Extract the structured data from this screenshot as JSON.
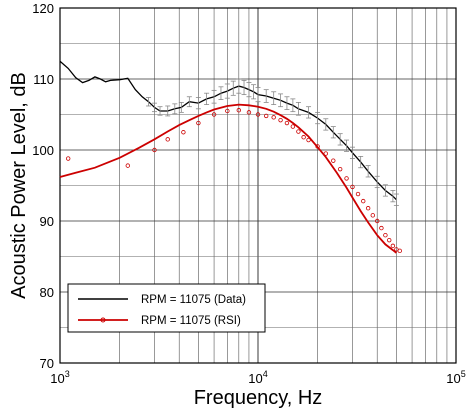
{
  "chart_data": {
    "type": "line",
    "title": "",
    "xlabel": "Frequency, Hz",
    "ylabel": "Acoustic Power Level, dB",
    "x_scale": "log",
    "xlim": [
      1000,
      100000
    ],
    "ylim": [
      70,
      120
    ],
    "x_ticks": [
      {
        "value": 1000,
        "base": "10",
        "exp": "3"
      },
      {
        "value": 10000,
        "base": "10",
        "exp": "4"
      },
      {
        "value": 100000,
        "base": "10",
        "exp": "5"
      }
    ],
    "y_ticks": [
      "70",
      "80",
      "90",
      "100",
      "110",
      "120"
    ],
    "y_tick_values": [
      70,
      80,
      90,
      100,
      110,
      120
    ],
    "grid": true,
    "legend_position": "bottom-left",
    "series": [
      {
        "name": "RPM = 11075 (Data)",
        "color": "#000000",
        "style": "line-with-errorbars",
        "x": [
          1000,
          1100,
          1200,
          1300,
          1400,
          1500,
          1600,
          1700,
          1800,
          2000,
          2200,
          2400,
          2600,
          2800,
          3000,
          3200,
          3500,
          3800,
          4100,
          4500,
          5000,
          5500,
          6000,
          6500,
          7000,
          7500,
          8000,
          8500,
          9000,
          9500,
          10000,
          11000,
          12000,
          13000,
          14000,
          15000,
          16000,
          18000,
          20000,
          22000,
          24000,
          26000,
          28000,
          30000,
          33000,
          36000,
          40000,
          44000,
          48000,
          50000
        ],
        "y": [
          112.5,
          111.5,
          110.2,
          109.5,
          109.8,
          110.3,
          110.0,
          109.6,
          109.8,
          109.9,
          110.1,
          108.5,
          107.5,
          106.8,
          106.0,
          105.5,
          105.5,
          105.8,
          106.0,
          106.8,
          106.6,
          107.2,
          107.5,
          108.0,
          108.3,
          108.7,
          109.0,
          108.8,
          108.5,
          108.2,
          107.8,
          107.6,
          107.3,
          107.0,
          106.6,
          106.3,
          105.8,
          105.3,
          104.5,
          103.6,
          102.5,
          101.5,
          100.6,
          99.6,
          98.3,
          97.0,
          95.5,
          94.3,
          93.5,
          93.0
        ],
        "error": [
          0,
          0,
          0,
          0,
          0,
          0,
          0,
          0,
          0,
          0,
          0,
          0,
          0,
          0.6,
          0.6,
          0.6,
          0.7,
          0.7,
          0.7,
          0.7,
          0.8,
          0.8,
          0.9,
          0.9,
          1.0,
          1.0,
          1.0,
          1.0,
          1.0,
          1.0,
          1.0,
          0.9,
          0.9,
          0.9,
          0.9,
          0.9,
          0.9,
          0.8,
          0.8,
          0.8,
          0.8,
          0.8,
          0.8,
          0.8,
          0.8,
          0.8,
          0.8,
          0.8,
          0.8,
          0.8
        ]
      },
      {
        "name": "RPM = 11075 (RSI)",
        "color": "#cc0000",
        "style": "line",
        "x": [
          1000,
          1200,
          1500,
          1800,
          2000,
          2500,
          3000,
          3500,
          4000,
          4500,
          5000,
          5500,
          6000,
          7000,
          8000,
          9000,
          10000,
          11000,
          12000,
          13000,
          14000,
          15000,
          16000,
          18000,
          20000,
          22000,
          25000,
          28000,
          30000,
          33000,
          36000,
          40000,
          44000,
          48000,
          50000
        ],
        "y": [
          96.2,
          96.8,
          97.5,
          98.4,
          98.9,
          100.3,
          101.5,
          102.6,
          103.5,
          104.2,
          104.8,
          105.3,
          105.7,
          106.2,
          106.4,
          106.3,
          106.1,
          105.8,
          105.4,
          104.9,
          104.4,
          103.8,
          103.2,
          101.9,
          100.4,
          99.0,
          96.8,
          94.7,
          93.3,
          91.4,
          89.8,
          88.0,
          86.7,
          85.9,
          85.5
        ]
      },
      {
        "name": "",
        "color": "#cc0000",
        "style": "open-markers",
        "x": [
          1100,
          2200,
          3000,
          3500,
          4200,
          5000,
          6000,
          7000,
          8000,
          9000,
          10000,
          11000,
          12000,
          13000,
          14000,
          15000,
          16000,
          17000,
          18000,
          20000,
          22000,
          24000,
          26000,
          28000,
          30000,
          32000,
          34000,
          36000,
          38000,
          40000,
          42000,
          44000,
          46000,
          48000,
          50000,
          52000
        ],
        "y": [
          98.8,
          97.8,
          100.0,
          101.5,
          102.5,
          103.8,
          105.0,
          105.5,
          105.6,
          105.3,
          105.0,
          104.8,
          104.6,
          104.2,
          103.8,
          103.3,
          102.6,
          101.8,
          101.4,
          100.5,
          99.5,
          98.5,
          97.3,
          96.0,
          94.8,
          93.8,
          92.8,
          91.8,
          90.8,
          90.0,
          89.0,
          88.0,
          87.3,
          86.5,
          86.0,
          85.8
        ]
      }
    ]
  }
}
